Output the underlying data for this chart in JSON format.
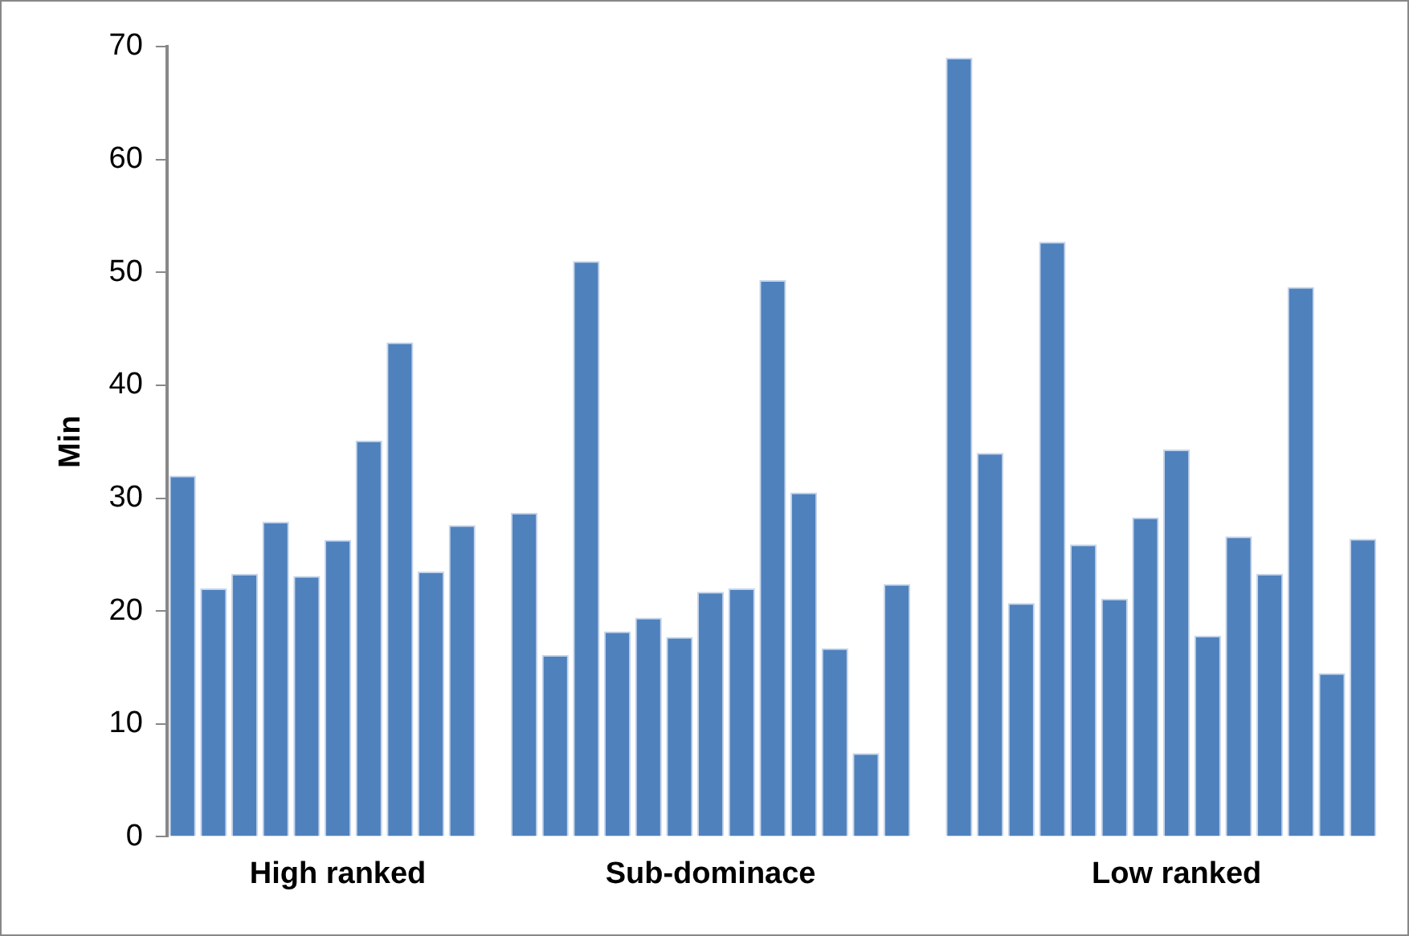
{
  "chart_data": {
    "type": "bar",
    "ylabel": "Min",
    "categories": [
      null,
      null,
      null,
      null,
      null,
      "High ranked",
      null,
      null,
      null,
      null,
      null,
      null,
      null,
      null,
      null,
      null,
      null,
      "Sub-dominace",
      null,
      null,
      null,
      null,
      null,
      null,
      null,
      null,
      null,
      null,
      null,
      null,
      null,
      null,
      "Low ranked",
      null,
      null,
      null,
      null,
      null,
      null
    ],
    "series": [
      {
        "color": "#4f81bd",
        "values": [
          32,
          22,
          23.3,
          27.9,
          23.1,
          26.3,
          35.1,
          43.8,
          23.5,
          27.6,
          null,
          28.7,
          16.1,
          51,
          18.2,
          19.4,
          17.7,
          21.7,
          22,
          49.3,
          30.5,
          16.7,
          7.4,
          22.4,
          null,
          69,
          34,
          20.7,
          52.7,
          25.9,
          21.1,
          28.3,
          34.3,
          17.8,
          26.6,
          23.3,
          48.7,
          14.5,
          26.4
        ]
      }
    ],
    "ylim": [
      0,
      70
    ],
    "yticks": [
      0,
      10,
      20,
      30,
      40,
      50,
      60,
      70
    ],
    "grid": false,
    "legend": false
  }
}
